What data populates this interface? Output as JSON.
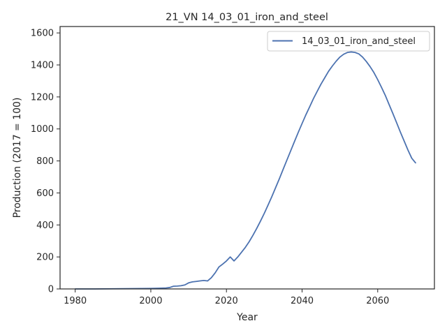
{
  "chart_data": {
    "type": "line",
    "title": "21_VN 14_03_01_iron_and_steel",
    "xlabel": "Year",
    "ylabel": "Production (2017 = 100)",
    "xlim": [
      1976,
      2075
    ],
    "ylim": [
      0,
      1640
    ],
    "xticks": [
      1980,
      2000,
      2020,
      2040,
      2060
    ],
    "yticks": [
      0,
      200,
      400,
      600,
      800,
      1000,
      1200,
      1400,
      1600
    ],
    "grid": false,
    "legend": {
      "placement": "top-right",
      "entries": [
        "14_03_01_iron_and_steel"
      ]
    },
    "series": [
      {
        "name": "14_03_01_iron_and_steel",
        "color": "#4c72b0",
        "x": [
          1980,
          1985,
          1990,
          1995,
          2000,
          2002,
          2004,
          2005,
          2006,
          2007,
          2008,
          2009,
          2010,
          2011,
          2012,
          2013,
          2014,
          2015,
          2016,
          2017,
          2018,
          2019,
          2020,
          2021,
          2022,
          2023,
          2024,
          2025,
          2026,
          2027,
          2028,
          2029,
          2030,
          2031,
          2032,
          2033,
          2034,
          2035,
          2036,
          2037,
          2038,
          2039,
          2040,
          2041,
          2042,
          2043,
          2044,
          2045,
          2046,
          2047,
          2048,
          2049,
          2050,
          2051,
          2052,
          2053,
          2054,
          2055,
          2056,
          2057,
          2058,
          2059,
          2060,
          2061,
          2062,
          2063,
          2064,
          2065,
          2066,
          2067,
          2068,
          2069,
          2070
        ],
        "values": [
          0,
          0,
          1,
          2,
          3,
          4,
          6,
          9,
          17,
          18,
          20,
          25,
          38,
          44,
          47,
          50,
          53,
          50,
          70,
          100,
          137,
          155,
          175,
          200,
          175,
          200,
          230,
          260,
          295,
          335,
          378,
          424,
          472,
          524,
          577,
          633,
          689,
          748,
          806,
          864,
          922,
          979,
          1034,
          1088,
          1138,
          1189,
          1235,
          1280,
          1320,
          1360,
          1393,
          1423,
          1449,
          1467,
          1478,
          1481,
          1478,
          1469,
          1449,
          1421,
          1389,
          1352,
          1308,
          1260,
          1210,
          1153,
          1097,
          1039,
          980,
          924,
          868,
          817,
          788
        ]
      }
    ]
  }
}
